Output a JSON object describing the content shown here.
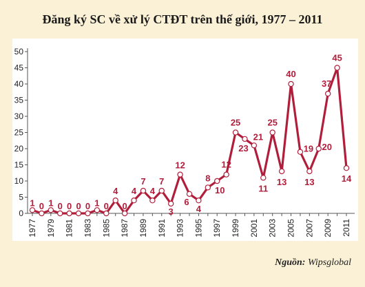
{
  "title": "Đăng ký SC về xử lý CTĐT trên thế giới, 1977 – 2011",
  "source": {
    "label": "Nguồn:",
    "value": "Wipsglobal"
  },
  "chart_data": {
    "type": "line",
    "title": "Đăng ký SC về xử lý CTĐT trên thế giới, 1977 – 2011",
    "xlabel": "",
    "ylabel": "",
    "x": [
      1977,
      1978,
      1979,
      1980,
      1981,
      1982,
      1983,
      1984,
      1985,
      1986,
      1987,
      1988,
      1989,
      1990,
      1991,
      1992,
      1993,
      1994,
      1995,
      1996,
      1997,
      1998,
      1999,
      2000,
      2001,
      2002,
      2003,
      2004,
      2005,
      2006,
      2007,
      2008,
      2009,
      2010,
      2011
    ],
    "values": [
      1,
      0,
      1,
      0,
      0,
      0,
      0,
      1,
      0,
      4,
      0,
      4,
      7,
      4,
      7,
      3,
      12,
      6,
      4,
      8,
      10,
      12,
      25,
      23,
      21,
      11,
      25,
      13,
      40,
      19,
      13,
      20,
      37,
      45,
      14
    ],
    "labeled_points": [
      {
        "x": 1977,
        "text": "1"
      },
      {
        "x": 1978,
        "text": "0"
      },
      {
        "x": 1979,
        "text": "1"
      },
      {
        "x": 1980,
        "text": "0"
      },
      {
        "x": 1981,
        "text": "0"
      },
      {
        "x": 1982,
        "text": "0"
      },
      {
        "x": 1983,
        "text": "0"
      },
      {
        "x": 1984,
        "text": "1"
      },
      {
        "x": 1985,
        "text": "0"
      },
      {
        "x": 1986,
        "text": "4"
      },
      {
        "x": 1987,
        "text": "0"
      },
      {
        "x": 1988,
        "text": "4"
      },
      {
        "x": 1989,
        "text": "7"
      },
      {
        "x": 1990,
        "text": "4"
      },
      {
        "x": 1991,
        "text": "7"
      },
      {
        "x": 1992,
        "text": "3"
      },
      {
        "x": 1993,
        "text": "12"
      },
      {
        "x": 1994,
        "text": "6"
      },
      {
        "x": 1995,
        "text": "4"
      },
      {
        "x": 1996,
        "text": "8"
      },
      {
        "x": 1997,
        "text": "10"
      },
      {
        "x": 1998,
        "text": "12"
      },
      {
        "x": 1999,
        "text": "25"
      },
      {
        "x": 2000,
        "text": "23"
      },
      {
        "x": 2001,
        "text": "21"
      },
      {
        "x": 2002,
        "text": "11"
      },
      {
        "x": 2003,
        "text": "25"
      },
      {
        "x": 2004,
        "text": "13"
      },
      {
        "x": 2005,
        "text": "40"
      },
      {
        "x": 2006,
        "text": "19"
      },
      {
        "x": 2007,
        "text": "13"
      },
      {
        "x": 2008,
        "text": "20"
      },
      {
        "x": 2009,
        "text": "37"
      },
      {
        "x": 2010,
        "text": "45"
      },
      {
        "x": 2011,
        "text": "14"
      }
    ],
    "x_tick_labels": [
      "1977",
      "1979",
      "1981",
      "1983",
      "1985",
      "1987",
      "1989",
      "1991",
      "1993",
      "1995",
      "1997",
      "1999",
      "2001",
      "2003",
      "2005",
      "2007",
      "2009",
      "2011"
    ],
    "y_ticks": [
      0,
      5,
      10,
      15,
      20,
      25,
      30,
      35,
      40,
      45,
      50
    ],
    "ylim": [
      0,
      50
    ],
    "xlim": [
      1977,
      2011
    ],
    "grid": false,
    "legend": "none",
    "colors": {
      "line": "#b01e3b",
      "marker_fill": "#ffffff",
      "plot_bg": "#ffffff",
      "page_bg": "#fbf1d6",
      "axis": "#555555"
    }
  }
}
